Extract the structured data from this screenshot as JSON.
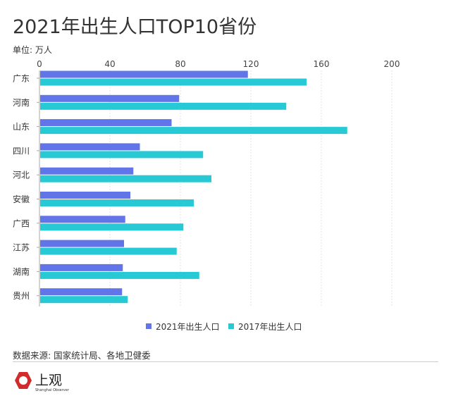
{
  "title": "2021年出生人口TOP10省份",
  "unit_label": "单位: 万人",
  "source": "数据来源: 国家统计局、各地卫健委",
  "logo": {
    "text": "上观",
    "subtext": "Shanghai Observer"
  },
  "colors": {
    "series_2021": "#6275e8",
    "series_2017": "#26c9d4"
  },
  "chart_data": {
    "type": "bar",
    "orientation": "horizontal",
    "categories": [
      "广东",
      "河南",
      "山东",
      "四川",
      "河北",
      "安徽",
      "广西",
      "江苏",
      "湖南",
      "贵州"
    ],
    "series": [
      {
        "name": "2021年出生人口",
        "values": [
          118.3,
          79.3,
          75.0,
          57.0,
          53.3,
          51.6,
          48.7,
          48.0,
          47.3,
          46.9
        ]
      },
      {
        "name": "2017年出生人口",
        "values": [
          151.6,
          140.1,
          174.7,
          92.9,
          97.6,
          87.6,
          81.7,
          77.9,
          90.7,
          50.1
        ]
      }
    ],
    "xlim": [
      0,
      200
    ],
    "xticks": [
      "0",
      "40",
      "80",
      "120",
      "160",
      "200"
    ],
    "grid": true,
    "legend": "bottom"
  }
}
